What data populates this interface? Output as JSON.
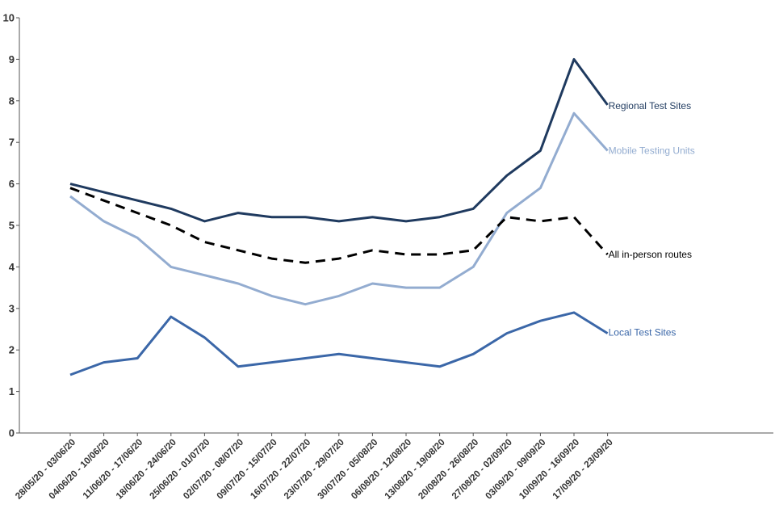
{
  "chart_data": {
    "type": "line",
    "title": "",
    "xlabel": "",
    "ylabel": "",
    "ylim": [
      0,
      10
    ],
    "yticks": [
      0,
      1,
      2,
      3,
      4,
      5,
      6,
      7,
      8,
      9,
      10
    ],
    "grid": false,
    "categories": [
      "28/05/20 - 03/06/20",
      "04/06/20 - 10/06/20",
      "11/06/20 - 17/06/20",
      "18/06/20 - 24/06/20",
      "25/06/20 - 01/07/20",
      "02/07/20 - 08/07/20",
      "09/07/20 - 15/07/20",
      "16/07/20 - 22/07/20",
      "23/07/20 - 29/07/20",
      "30/07/20 - 05/08/20",
      "06/08/20 - 12/08/20",
      "13/08/20 - 19/08/20",
      "20/08/20 - 26/08/20",
      "27/08/20 - 02/09/20",
      "03/09/20 - 09/09/20",
      "10/09/20 - 16/09/20",
      "17/09/20 - 23/09/20"
    ],
    "series": [
      {
        "name": "Regional Test Sites",
        "color": "#1f3a5f",
        "dash": "solid",
        "values": [
          6.0,
          5.8,
          5.6,
          5.4,
          5.1,
          5.3,
          5.2,
          5.2,
          5.1,
          5.2,
          5.1,
          5.2,
          5.4,
          6.2,
          6.8,
          9.0,
          7.9
        ]
      },
      {
        "name": "Mobile Testing Units",
        "color": "#93acd0",
        "dash": "solid",
        "values": [
          5.7,
          5.1,
          4.7,
          4.0,
          3.8,
          3.6,
          3.3,
          3.1,
          3.3,
          3.6,
          3.5,
          3.5,
          4.0,
          5.3,
          5.9,
          7.7,
          6.8
        ]
      },
      {
        "name": "All in-person routes",
        "color": "#000000",
        "dash": "dashed",
        "values": [
          5.9,
          5.6,
          5.3,
          5.0,
          4.6,
          4.4,
          4.2,
          4.1,
          4.2,
          4.4,
          4.3,
          4.3,
          4.4,
          5.2,
          5.1,
          5.2,
          4.3
        ]
      },
      {
        "name": "Local Test Sites",
        "color": "#3b67a8",
        "dash": "solid",
        "values": [
          1.4,
          1.7,
          1.8,
          2.8,
          2.3,
          1.6,
          1.7,
          1.8,
          1.9,
          1.8,
          1.7,
          1.6,
          1.9,
          2.4,
          2.7,
          2.9,
          2.4
        ]
      }
    ]
  }
}
